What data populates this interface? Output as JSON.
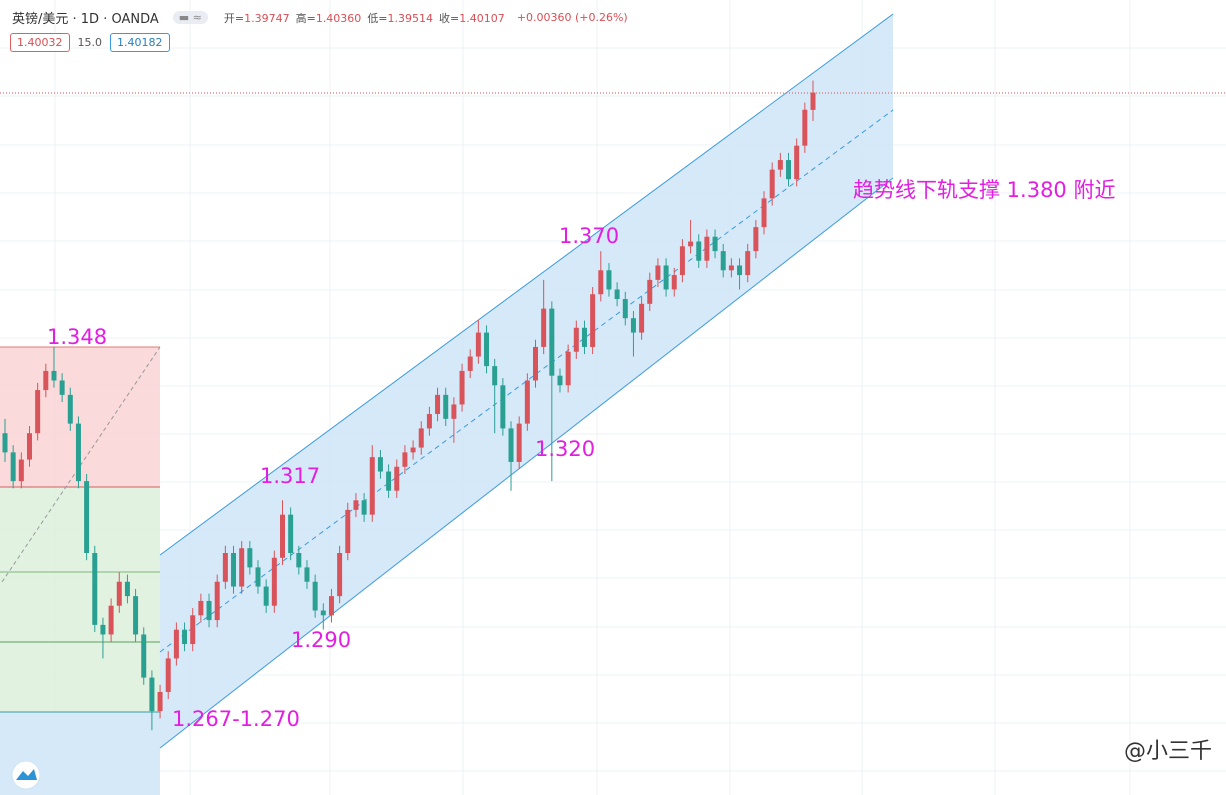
{
  "chart_data": {
    "type": "candlestick",
    "title": "英镑/美元 · 1D · OANDA",
    "ohlc_legend": [
      {
        "label": "开=",
        "value": "1.39747"
      },
      {
        "label": "高=",
        "value": "1.40360"
      },
      {
        "label": "低=",
        "value": "1.39514"
      },
      {
        "label": "收=",
        "value": "1.40107"
      }
    ],
    "change": "+0.00360 (+0.26%)",
    "sell_price": "1.40032",
    "spread": "15.0",
    "buy_price": "1.40182",
    "watermark": "@小三千",
    "up_color": "#d9535a",
    "down_color": "#2aa093",
    "ylim": [
      1.2545,
      1.4204
    ],
    "annotations": [
      "1.348",
      "1.317",
      "1.290",
      "1.267-1.270",
      "1.370",
      "1.320",
      "趋势线下轨支撑 1.380 附近"
    ],
    "open": [
      1.33,
      1.326,
      1.32,
      1.3245,
      1.33,
      1.339,
      1.343,
      1.341,
      1.338,
      1.332,
      1.32,
      1.305,
      1.29,
      1.288,
      1.294,
      1.299,
      1.296,
      1.288,
      1.279,
      1.272,
      1.276,
      1.283,
      1.289,
      1.286,
      1.292,
      1.295,
      1.291,
      1.299,
      1.305,
      1.298,
      1.306,
      1.302,
      1.298,
      1.294,
      1.304,
      1.313,
      1.305,
      1.302,
      1.299,
      1.293,
      1.292,
      1.296,
      1.305,
      1.314,
      1.316,
      1.313,
      1.325,
      1.322,
      1.318,
      1.323,
      1.326,
      1.327,
      1.331,
      1.334,
      1.338,
      1.333,
      1.336,
      1.343,
      1.346,
      1.351,
      1.344,
      1.34,
      1.331,
      1.324,
      1.332,
      1.341,
      1.348,
      1.356,
      1.342,
      1.34,
      1.347,
      1.352,
      1.348,
      1.359,
      1.364,
      1.36,
      1.358,
      1.354,
      1.351,
      1.357,
      1.362,
      1.365,
      1.36,
      1.363,
      1.369,
      1.37,
      1.366,
      1.371,
      1.368,
      1.364,
      1.365,
      1.363,
      1.368,
      1.373,
      1.379,
      1.385,
      1.387,
      1.383,
      1.39,
      1.39747
    ],
    "high": [
      1.333,
      1.3275,
      1.326,
      1.3315,
      1.3405,
      1.3445,
      1.348,
      1.3425,
      1.3395,
      1.3335,
      1.3215,
      1.3065,
      1.2915,
      1.2955,
      1.301,
      1.3005,
      1.2975,
      1.2895,
      1.2805,
      1.2775,
      1.2845,
      1.2905,
      1.2905,
      1.2935,
      1.2965,
      1.2965,
      1.3005,
      1.3065,
      1.3065,
      1.3075,
      1.3075,
      1.3035,
      1.2995,
      1.3055,
      1.316,
      1.3145,
      1.3065,
      1.3035,
      1.3005,
      1.2945,
      1.2975,
      1.3065,
      1.3155,
      1.3175,
      1.3175,
      1.3275,
      1.3265,
      1.3235,
      1.3245,
      1.3275,
      1.3285,
      1.3325,
      1.3355,
      1.3395,
      1.3395,
      1.3375,
      1.3445,
      1.3475,
      1.3536,
      1.3525,
      1.3455,
      1.3415,
      1.3325,
      1.3335,
      1.3425,
      1.3495,
      1.362,
      1.3575,
      1.3435,
      1.3485,
      1.3535,
      1.3535,
      1.3605,
      1.368,
      1.3655,
      1.3615,
      1.3595,
      1.3555,
      1.3585,
      1.3635,
      1.3665,
      1.3665,
      1.3645,
      1.3705,
      1.3745,
      1.3715,
      1.3725,
      1.3725,
      1.3695,
      1.3665,
      1.3665,
      1.3695,
      1.3745,
      1.3805,
      1.3865,
      1.3885,
      1.3885,
      1.3915,
      1.399,
      1.4036
    ],
    "low": [
      1.324,
      1.3185,
      1.3185,
      1.323,
      1.3285,
      1.3375,
      1.3395,
      1.3365,
      1.3305,
      1.3185,
      1.3035,
      1.2885,
      1.283,
      1.2865,
      1.2925,
      1.2945,
      1.2865,
      1.2775,
      1.268,
      1.2705,
      1.2745,
      1.2815,
      1.2845,
      1.2845,
      1.2905,
      1.2895,
      1.2895,
      1.2975,
      1.2965,
      1.2965,
      1.3005,
      1.2965,
      1.2925,
      1.2925,
      1.3025,
      1.3035,
      1.3005,
      1.2975,
      1.2915,
      1.289,
      1.2905,
      1.2945,
      1.3035,
      1.3125,
      1.3115,
      1.3115,
      1.3205,
      1.3165,
      1.3165,
      1.3215,
      1.3245,
      1.3255,
      1.3295,
      1.3325,
      1.3315,
      1.328,
      1.3345,
      1.3415,
      1.3445,
      1.3425,
      1.33,
      1.3295,
      1.318,
      1.3225,
      1.3305,
      1.3395,
      1.3465,
      1.32,
      1.3385,
      1.3385,
      1.3455,
      1.3465,
      1.3465,
      1.3575,
      1.3585,
      1.3565,
      1.3525,
      1.346,
      1.3495,
      1.3555,
      1.3605,
      1.3585,
      1.3585,
      1.3615,
      1.3675,
      1.3645,
      1.3645,
      1.3665,
      1.3625,
      1.3625,
      1.36,
      1.3615,
      1.3665,
      1.3715,
      1.3775,
      1.3835,
      1.3815,
      1.3815,
      1.3885,
      1.39514
    ],
    "close": [
      1.326,
      1.32,
      1.3245,
      1.33,
      1.339,
      1.343,
      1.341,
      1.338,
      1.332,
      1.32,
      1.305,
      1.29,
      1.288,
      1.294,
      1.299,
      1.296,
      1.288,
      1.279,
      1.272,
      1.276,
      1.283,
      1.289,
      1.286,
      1.292,
      1.295,
      1.291,
      1.299,
      1.305,
      1.298,
      1.306,
      1.302,
      1.298,
      1.294,
      1.304,
      1.313,
      1.305,
      1.302,
      1.299,
      1.293,
      1.292,
      1.296,
      1.305,
      1.314,
      1.316,
      1.313,
      1.325,
      1.322,
      1.318,
      1.323,
      1.326,
      1.327,
      1.331,
      1.334,
      1.338,
      1.333,
      1.336,
      1.343,
      1.346,
      1.351,
      1.344,
      1.34,
      1.331,
      1.324,
      1.332,
      1.341,
      1.348,
      1.356,
      1.342,
      1.34,
      1.347,
      1.352,
      1.348,
      1.359,
      1.364,
      1.36,
      1.358,
      1.354,
      1.351,
      1.357,
      1.362,
      1.365,
      1.36,
      1.363,
      1.369,
      1.37,
      1.366,
      1.371,
      1.368,
      1.364,
      1.365,
      1.363,
      1.368,
      1.373,
      1.379,
      1.385,
      1.387,
      1.383,
      1.39,
      1.3975,
      1.40107
    ]
  }
}
